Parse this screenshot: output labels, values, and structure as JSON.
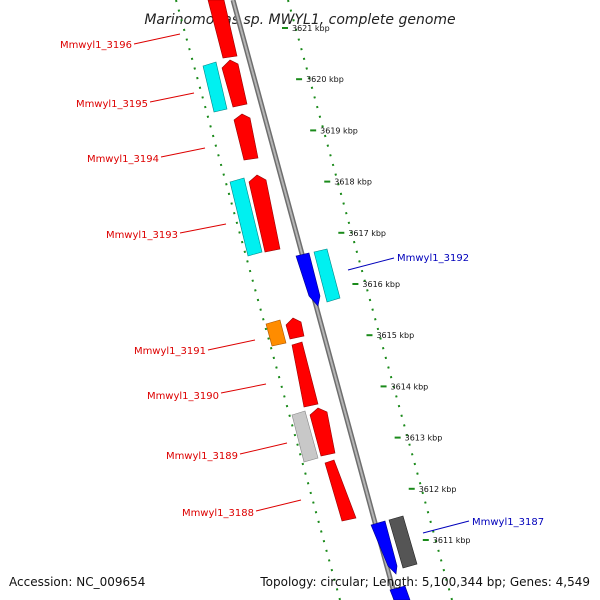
{
  "title": "Marinomonas sp. MWYL1, complete genome",
  "footer": {
    "accession": "Accession: NC_009654",
    "summary": "Topology: circular; Length: 5,100,344 bp; Genes: 4,549"
  },
  "colors": {
    "red": "#ff0000",
    "cyan": "#00ffff",
    "orange": "#ff8c00",
    "grey": "#c8c8c8",
    "blue": "#0000ff",
    "darkgrey": "#555555",
    "tick_green": "#1a8a1a",
    "backbone": "#8a8a8a",
    "label_red": "#dd0000",
    "label_blue": "#0000bb"
  },
  "ticks": [
    {
      "label": "3621 kbp",
      "kbp": 3621
    },
    {
      "label": "3620 kbp",
      "kbp": 3620
    },
    {
      "label": "3619 kbp",
      "kbp": 3619
    },
    {
      "label": "3618 kbp",
      "kbp": 3618
    },
    {
      "label": "3617 kbp",
      "kbp": 3617
    },
    {
      "label": "3616 kbp",
      "kbp": 3616
    },
    {
      "label": "3615 kbp",
      "kbp": 3615
    },
    {
      "label": "3614 kbp",
      "kbp": 3614
    },
    {
      "label": "3613 kbp",
      "kbp": 3613
    },
    {
      "label": "3612 kbp",
      "kbp": 3612
    },
    {
      "label": "3611 kbp",
      "kbp": 3611
    }
  ],
  "gene_labels": [
    {
      "text": "Mmwyl1_3196",
      "strand": "reverse"
    },
    {
      "text": "Mmwyl1_3195",
      "strand": "reverse"
    },
    {
      "text": "Mmwyl1_3194",
      "strand": "reverse"
    },
    {
      "text": "Mmwyl1_3193",
      "strand": "reverse"
    },
    {
      "text": "Mmwyl1_3192",
      "strand": "forward"
    },
    {
      "text": "Mmwyl1_3191",
      "strand": "reverse"
    },
    {
      "text": "Mmwyl1_3190",
      "strand": "reverse"
    },
    {
      "text": "Mmwyl1_3189",
      "strand": "reverse"
    },
    {
      "text": "Mmwyl1_3188",
      "strand": "reverse"
    },
    {
      "text": "Mmwyl1_3187",
      "strand": "forward"
    }
  ]
}
